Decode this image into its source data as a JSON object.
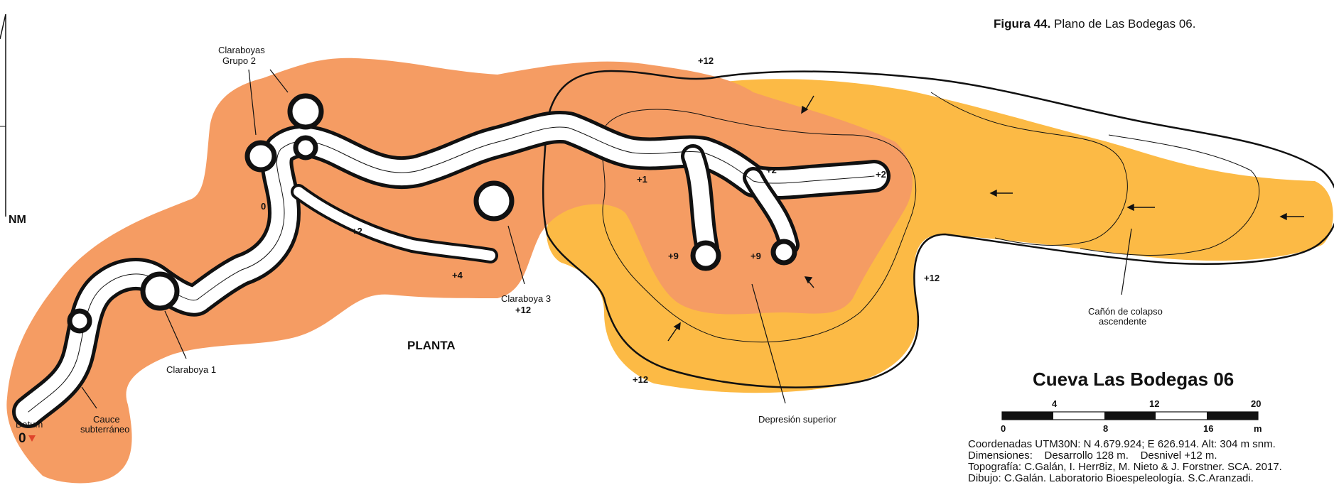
{
  "figure": {
    "label": "Figura 44.",
    "caption": "Plano de Las Bodegas 06."
  },
  "north": {
    "label": "NM"
  },
  "view": {
    "label": "PLANTA"
  },
  "cave_name": "Cueva Las Bodegas 06",
  "scale": {
    "top_ticks": [
      "4",
      "12",
      "20"
    ],
    "bottom_ticks": [
      "0",
      "8",
      "16",
      "m"
    ]
  },
  "info": {
    "coords": "Coordenadas UTM30N: N 4.679.924; E 626.914. Alt: 304 m snm.",
    "dims": "Dimensiones:    Desarrollo 128 m.    Desnivel +12 m.",
    "topo": "Topografía: C.Galán, I. Herr8iz, M. Nieto & J. Forstner. SCA. 2017.",
    "drawing": "Dibujo: C.Galán. Laboratorio Bioespeleología. S.C.Aranzadi."
  },
  "labels": {
    "claraboyas_g2_l1": "Claraboyas",
    "claraboyas_g2_l2": "Grupo 2",
    "claraboya1": "Claraboya 1",
    "claraboya3": "Claraboya 3",
    "cauce_l1": "Cauce",
    "cauce_l2": "subterráneo",
    "datum": "Datum",
    "datum_value": "0",
    "depresion": "Depresión superior",
    "canon_l1": "Cañón de colapso",
    "canon_l2": "ascendente"
  },
  "elevations": {
    "e_top": "+12",
    "e_zero": "0",
    "e_p2a": "+2",
    "e_p4": "+4",
    "e_c3": "+12",
    "e_p1": "+1",
    "e_p2b": "+2",
    "e_p2c": "+2",
    "e_p9a": "+9",
    "e_p9b": "+9",
    "e_right": "+12",
    "e_bottom": "+12"
  },
  "colors": {
    "orange": "#f59c63",
    "yellow": "#fcba45",
    "outline": "#111111",
    "datum_marker": "#e0442b"
  }
}
